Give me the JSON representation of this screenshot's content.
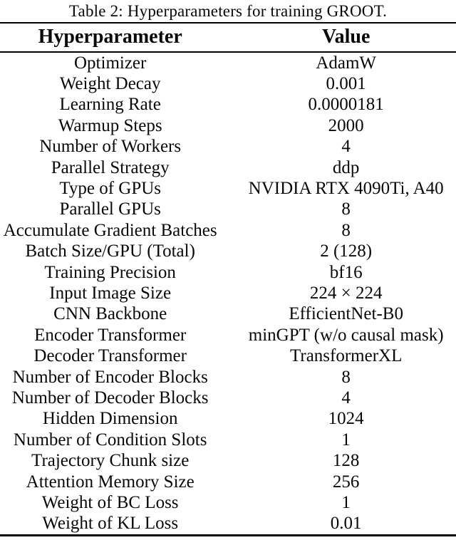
{
  "colors": {
    "ink": "#000000",
    "background": "#ffffff"
  },
  "table": {
    "caption": "Table 2: Hyperparameters for training GROOT.",
    "columns": [
      "Hyperparameter",
      "Value"
    ],
    "rows": [
      [
        "Optimizer",
        "AdamW"
      ],
      [
        "Weight Decay",
        "0.001"
      ],
      [
        "Learning Rate",
        "0.0000181"
      ],
      [
        "Warmup Steps",
        "2000"
      ],
      [
        "Number of Workers",
        "4"
      ],
      [
        "Parallel Strategy",
        "ddp"
      ],
      [
        "Type of GPUs",
        "NVIDIA RTX 4090Ti, A40"
      ],
      [
        "Parallel GPUs",
        "8"
      ],
      [
        "Accumulate Gradient Batches",
        "8"
      ],
      [
        "Batch Size/GPU (Total)",
        "2 (128)"
      ],
      [
        "Training Precision",
        "bf16"
      ],
      [
        "Input Image Size",
        "224 × 224"
      ],
      [
        "CNN Backbone",
        "EfficientNet-B0"
      ],
      [
        "Encoder Transformer",
        "minGPT (w/o causal mask)"
      ],
      [
        "Decoder Transformer",
        "TransformerXL"
      ],
      [
        "Number of Encoder Blocks",
        "8"
      ],
      [
        "Number of Decoder Blocks",
        "4"
      ],
      [
        "Hidden Dimension",
        "1024"
      ],
      [
        "Number of Condition Slots",
        "1"
      ],
      [
        "Trajectory Chunk size",
        "128"
      ],
      [
        "Attention Memory Size",
        "256"
      ],
      [
        "Weight of BC Loss",
        "1"
      ],
      [
        "Weight of KL Loss",
        "0.01"
      ]
    ]
  }
}
